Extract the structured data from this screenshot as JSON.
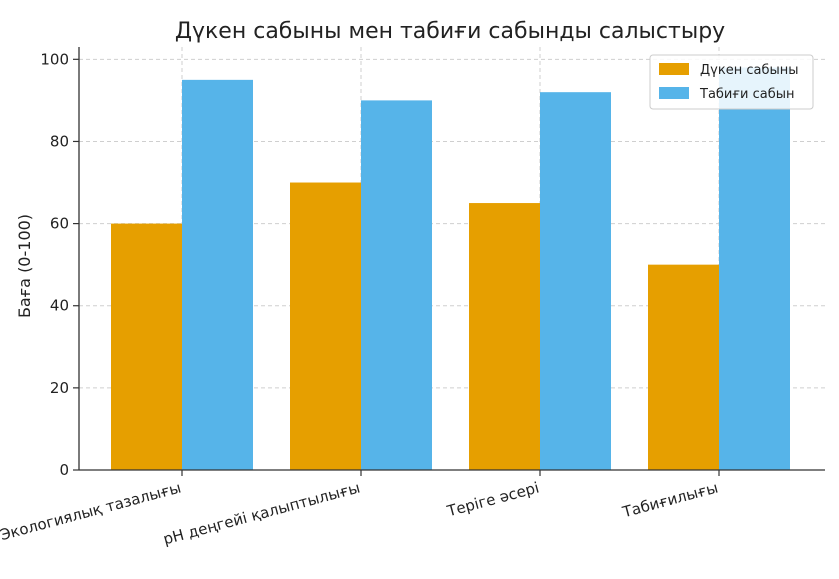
{
  "chart_data": {
    "type": "bar",
    "title": "Дүкен сабыны мен табиғи сабынды салыстыру",
    "xlabel": "",
    "ylabel": "Баға (0-100)",
    "categories": [
      "Экологиялық тазалығы",
      "pH деңгейі қалыптылығы",
      "Теріге әсері",
      "Табиғилығы"
    ],
    "series": [
      {
        "name": "Дүкен сабыны",
        "values": [
          60,
          70,
          65,
          50
        ],
        "color": "#E69F00"
      },
      {
        "name": "Табиғи сабын",
        "values": [
          95,
          90,
          92,
          98
        ],
        "color": "#56B4E9"
      }
    ],
    "ylim": [
      0,
      103
    ],
    "yticks": [
      0,
      20,
      40,
      60,
      80,
      100
    ],
    "grid": true,
    "legend_position": "top-right"
  }
}
